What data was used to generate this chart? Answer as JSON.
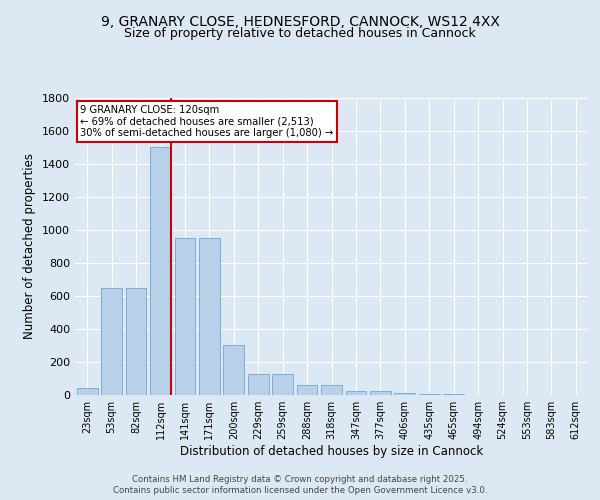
{
  "title_line1": "9, GRANARY CLOSE, HEDNESFORD, CANNOCK, WS12 4XX",
  "title_line2": "Size of property relative to detached houses in Cannock",
  "xlabel": "Distribution of detached houses by size in Cannock",
  "ylabel": "Number of detached properties",
  "categories": [
    "23sqm",
    "53sqm",
    "82sqm",
    "112sqm",
    "141sqm",
    "171sqm",
    "200sqm",
    "229sqm",
    "259sqm",
    "288sqm",
    "318sqm",
    "347sqm",
    "377sqm",
    "406sqm",
    "435sqm",
    "465sqm",
    "494sqm",
    "524sqm",
    "553sqm",
    "583sqm",
    "612sqm"
  ],
  "values": [
    40,
    650,
    650,
    1500,
    950,
    950,
    300,
    130,
    130,
    60,
    60,
    25,
    25,
    10,
    5,
    5,
    0,
    0,
    0,
    0,
    0
  ],
  "bar_color": "#b8d0e8",
  "bar_edge_color": "#6fa8d4",
  "vline_color": "#cc0000",
  "vline_pos": 3.45,
  "annotation_text": "9 GRANARY CLOSE: 120sqm\n← 69% of detached houses are smaller (2,513)\n30% of semi-detached houses are larger (1,080) →",
  "annotation_box_color": "#ffffff",
  "annotation_box_edge": "#cc0000",
  "ylim": [
    0,
    1800
  ],
  "yticks": [
    0,
    200,
    400,
    600,
    800,
    1000,
    1200,
    1400,
    1600,
    1800
  ],
  "bg_color": "#dce9f5",
  "plot_bg_color": "#dce9f5",
  "footer_line1": "Contains HM Land Registry data © Crown copyright and database right 2025.",
  "footer_line2": "Contains public sector information licensed under the Open Government Licence v3.0.",
  "grid_color": "#ffffff",
  "title_fontsize": 10,
  "subtitle_fontsize": 9,
  "bar_width": 0.85
}
